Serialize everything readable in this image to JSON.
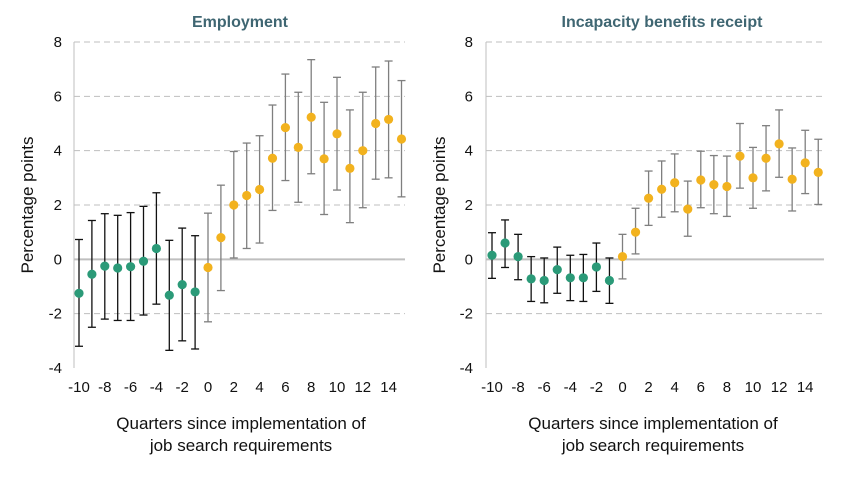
{
  "chart_data": [
    {
      "type": "scatter",
      "title": "Employment",
      "xlabel_lines": [
        "Quarters since implementation of",
        "job search requirements"
      ],
      "ylabel": "Percentage points",
      "x": [
        -10,
        -9,
        -8,
        -7,
        -6,
        -5,
        -4,
        -3,
        -2,
        -1,
        0,
        1,
        2,
        3,
        4,
        5,
        6,
        7,
        8,
        9,
        10,
        11,
        12,
        13,
        14,
        15
      ],
      "y": [
        -1.25,
        -0.55,
        -0.25,
        -0.32,
        -0.27,
        -0.07,
        0.4,
        -1.32,
        -0.93,
        -1.2,
        -0.3,
        0.8,
        2.0,
        2.35,
        2.57,
        3.72,
        4.85,
        4.12,
        5.23,
        3.7,
        4.62,
        3.35,
        4.0,
        5.0,
        5.15,
        4.43
      ],
      "y_lower": [
        -3.2,
        -2.5,
        -2.2,
        -2.25,
        -2.25,
        -2.05,
        -1.65,
        -3.35,
        -3.0,
        -3.3,
        -2.3,
        -1.15,
        0.05,
        0.4,
        0.6,
        1.8,
        2.9,
        2.1,
        3.15,
        1.65,
        2.55,
        1.35,
        1.9,
        2.95,
        3.0,
        2.3
      ],
      "y_upper": [
        0.73,
        1.43,
        1.68,
        1.62,
        1.72,
        1.95,
        2.45,
        0.7,
        1.15,
        0.87,
        1.7,
        2.73,
        3.97,
        4.28,
        4.55,
        5.68,
        6.82,
        6.15,
        7.35,
        5.78,
        6.7,
        5.5,
        6.15,
        7.08,
        7.3,
        6.58
      ],
      "treated_from_x": 0,
      "ylim": [
        -4,
        8
      ],
      "yticks": [
        -4,
        -2,
        0,
        2,
        4,
        6,
        8
      ],
      "xticks": [
        -10,
        -8,
        -6,
        -4,
        -2,
        0,
        2,
        4,
        6,
        8,
        10,
        12,
        14
      ],
      "grid": true,
      "colors": {
        "pre": "#2b9a78",
        "post": "#f2b21e",
        "pre_bar": "#111111",
        "post_bar": "#7f7f7f",
        "title": "#3f6672",
        "grid": "#bfbfbf",
        "zero": "#bfbfbf",
        "axis": "#bfbfbf"
      }
    },
    {
      "type": "scatter",
      "title": "Incapacity benefits receipt",
      "xlabel_lines": [
        "Quarters since implementation of",
        "job search requirements"
      ],
      "ylabel": "Percentage points",
      "x": [
        -10,
        -9,
        -8,
        -7,
        -6,
        -5,
        -4,
        -3,
        -2,
        -1,
        0,
        1,
        2,
        3,
        4,
        5,
        6,
        7,
        8,
        9,
        10,
        11,
        12,
        13,
        14,
        15
      ],
      "y": [
        0.15,
        0.6,
        0.1,
        -0.72,
        -0.78,
        -0.38,
        -0.68,
        -0.68,
        -0.28,
        -0.78,
        0.1,
        1.0,
        2.25,
        2.58,
        2.82,
        1.85,
        2.92,
        2.75,
        2.68,
        3.8,
        3.0,
        3.72,
        4.25,
        2.95,
        3.55,
        3.2
      ],
      "y_lower": [
        -0.7,
        -0.3,
        -0.75,
        -1.55,
        -1.6,
        -1.25,
        -1.52,
        -1.55,
        -1.18,
        -1.62,
        -0.72,
        0.2,
        1.25,
        1.55,
        1.75,
        0.85,
        1.9,
        1.68,
        1.58,
        2.62,
        1.88,
        2.52,
        3.02,
        1.78,
        2.42,
        2.02
      ],
      "y_upper": [
        0.98,
        1.45,
        0.92,
        0.1,
        0.05,
        0.45,
        0.15,
        0.18,
        0.6,
        0.05,
        0.92,
        1.88,
        3.25,
        3.62,
        3.88,
        2.88,
        3.98,
        3.82,
        3.8,
        5.0,
        4.12,
        4.92,
        5.5,
        4.1,
        4.75,
        4.42
      ],
      "treated_from_x": 0,
      "ylim": [
        -4,
        8
      ],
      "yticks": [
        -4,
        -2,
        0,
        2,
        4,
        6,
        8
      ],
      "xticks": [
        -10,
        -8,
        -6,
        -4,
        -2,
        0,
        2,
        4,
        6,
        8,
        10,
        12,
        14
      ],
      "grid": true,
      "colors": {
        "pre": "#2b9a78",
        "post": "#f2b21e",
        "pre_bar": "#111111",
        "post_bar": "#7f7f7f",
        "title": "#3f6672",
        "grid": "#bfbfbf",
        "zero": "#bfbfbf",
        "axis": "#bfbfbf"
      }
    }
  ]
}
